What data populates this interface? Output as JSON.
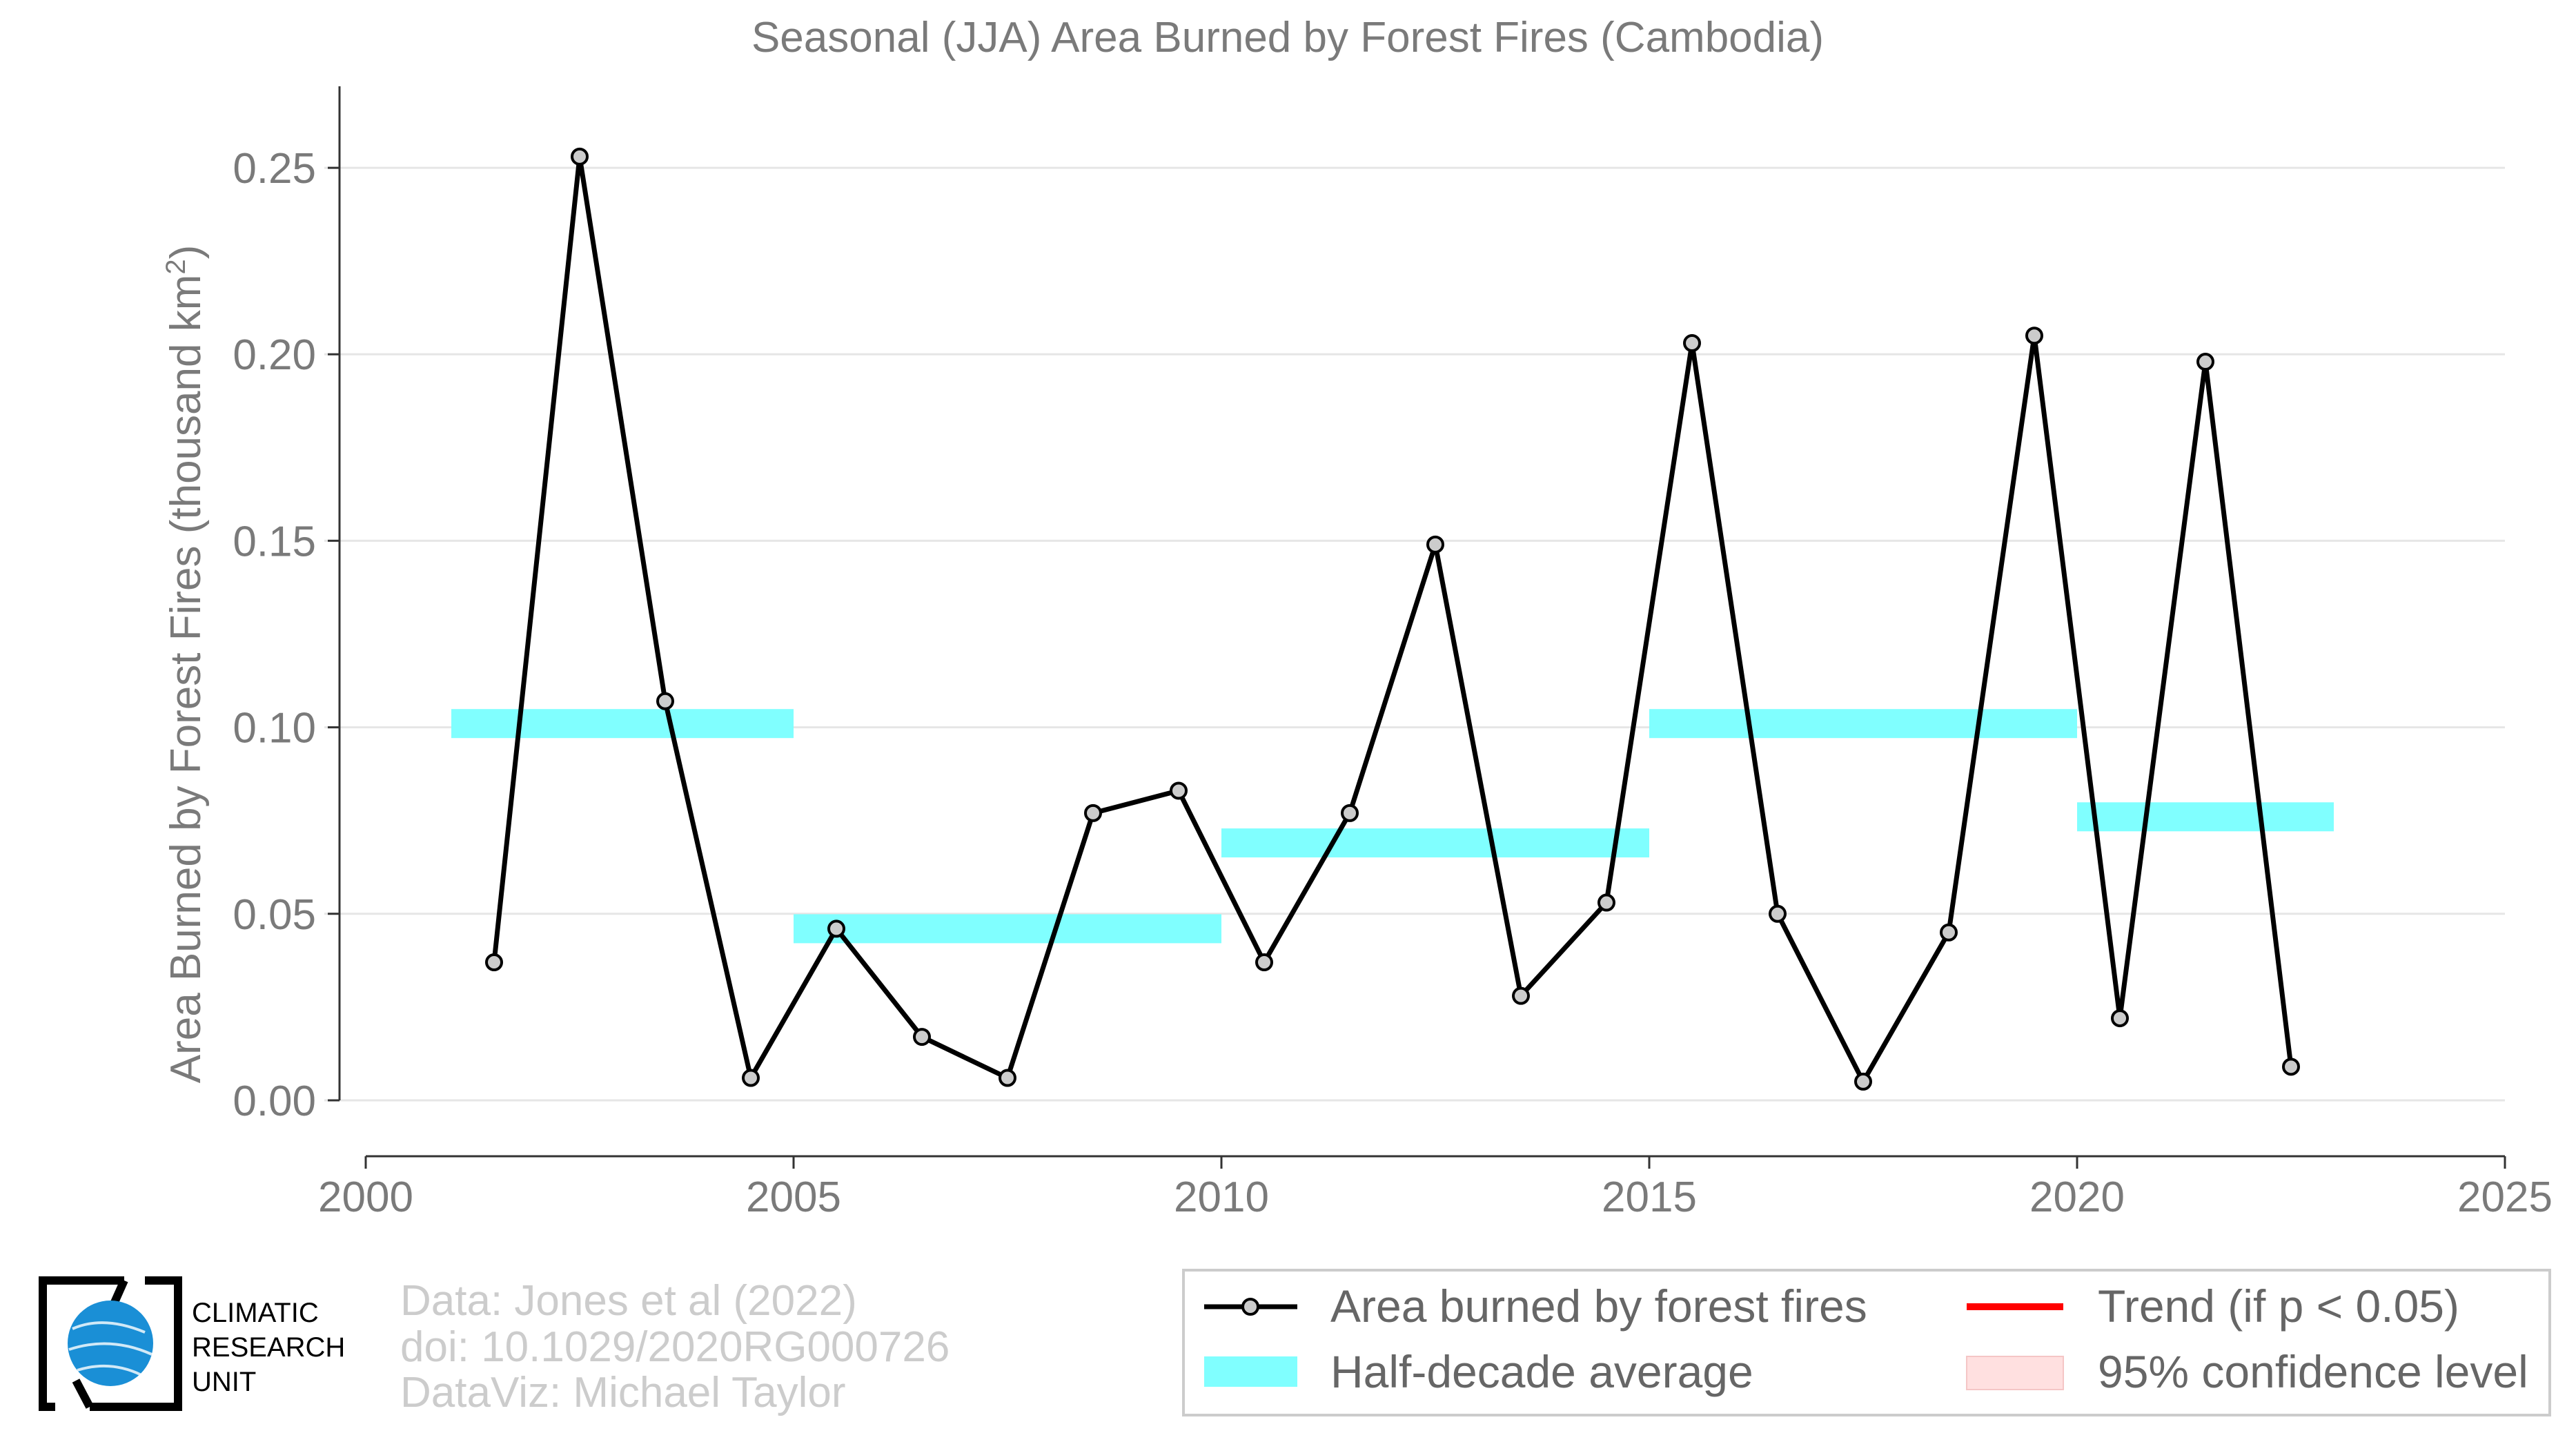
{
  "chart_data": {
    "type": "line",
    "title": "Seasonal (JJA) Area Burned by Forest Fires (Cambodia)",
    "ylabel_main": "Area Burned by Forest Fires (thousand km",
    "ylabel_sup": "2",
    "ylabel_end": ")",
    "xlabel": "",
    "xlim": [
      2000,
      2025
    ],
    "ylim": [
      -0.015,
      0.27
    ],
    "x_ticks": [
      "2000",
      "2005",
      "2010",
      "2015",
      "2020",
      "2025"
    ],
    "y_ticks": [
      "0.00",
      "0.05",
      "0.10",
      "0.15",
      "0.20",
      "0.25"
    ],
    "grid": true,
    "series": [
      {
        "name": "Area burned by forest fires",
        "x": [
          2001.5,
          2002.5,
          2003.5,
          2004.5,
          2005.5,
          2006.5,
          2007.5,
          2008.5,
          2009.5,
          2010.5,
          2011.5,
          2012.5,
          2013.5,
          2014.5,
          2015.5,
          2016.5,
          2017.5,
          2018.5,
          2019.5,
          2020.5,
          2021.5,
          2022.5
        ],
        "y": [
          0.037,
          0.253,
          0.107,
          0.006,
          0.046,
          0.017,
          0.006,
          0.077,
          0.083,
          0.037,
          0.077,
          0.149,
          0.028,
          0.053,
          0.203,
          0.05,
          0.005,
          0.045,
          0.205,
          0.022,
          0.198,
          0.009
        ],
        "color": "#000000",
        "marker_fill": "#cccccc"
      }
    ],
    "half_decade_average": {
      "name": "Half-decade average",
      "color": "#80ffff",
      "segments": [
        {
          "x0": 2001,
          "x1": 2005,
          "y": 0.101
        },
        {
          "x0": 2005,
          "x1": 2010,
          "y": 0.046
        },
        {
          "x0": 2010,
          "x1": 2015,
          "y": 0.069
        },
        {
          "x0": 2015,
          "x1": 2020,
          "y": 0.101
        },
        {
          "x0": 2020,
          "x1": 2023,
          "y": 0.076
        }
      ]
    },
    "legend": {
      "placement": "bottom-right",
      "items": [
        {
          "label": "Area burned by forest fires",
          "kind": "line-marker",
          "color": "#000000"
        },
        {
          "label": "Trend (if p < 0.05)",
          "kind": "line",
          "color": "#ff0000"
        },
        {
          "label": "Half-decade average",
          "kind": "band",
          "color": "#80ffff"
        },
        {
          "label": "95% confidence level",
          "kind": "area",
          "color": "#ffe0e0"
        }
      ]
    }
  },
  "credits": {
    "line1": "Data: Jones et al (2022)",
    "line2": "doi: 10.1029/2020RG000726",
    "line3": "DataViz: Michael Taylor"
  },
  "logo": {
    "line1": "CLIMATIC",
    "line2": "RESEARCH",
    "line3": "UNIT",
    "globe_color": "#1a8fd6"
  }
}
